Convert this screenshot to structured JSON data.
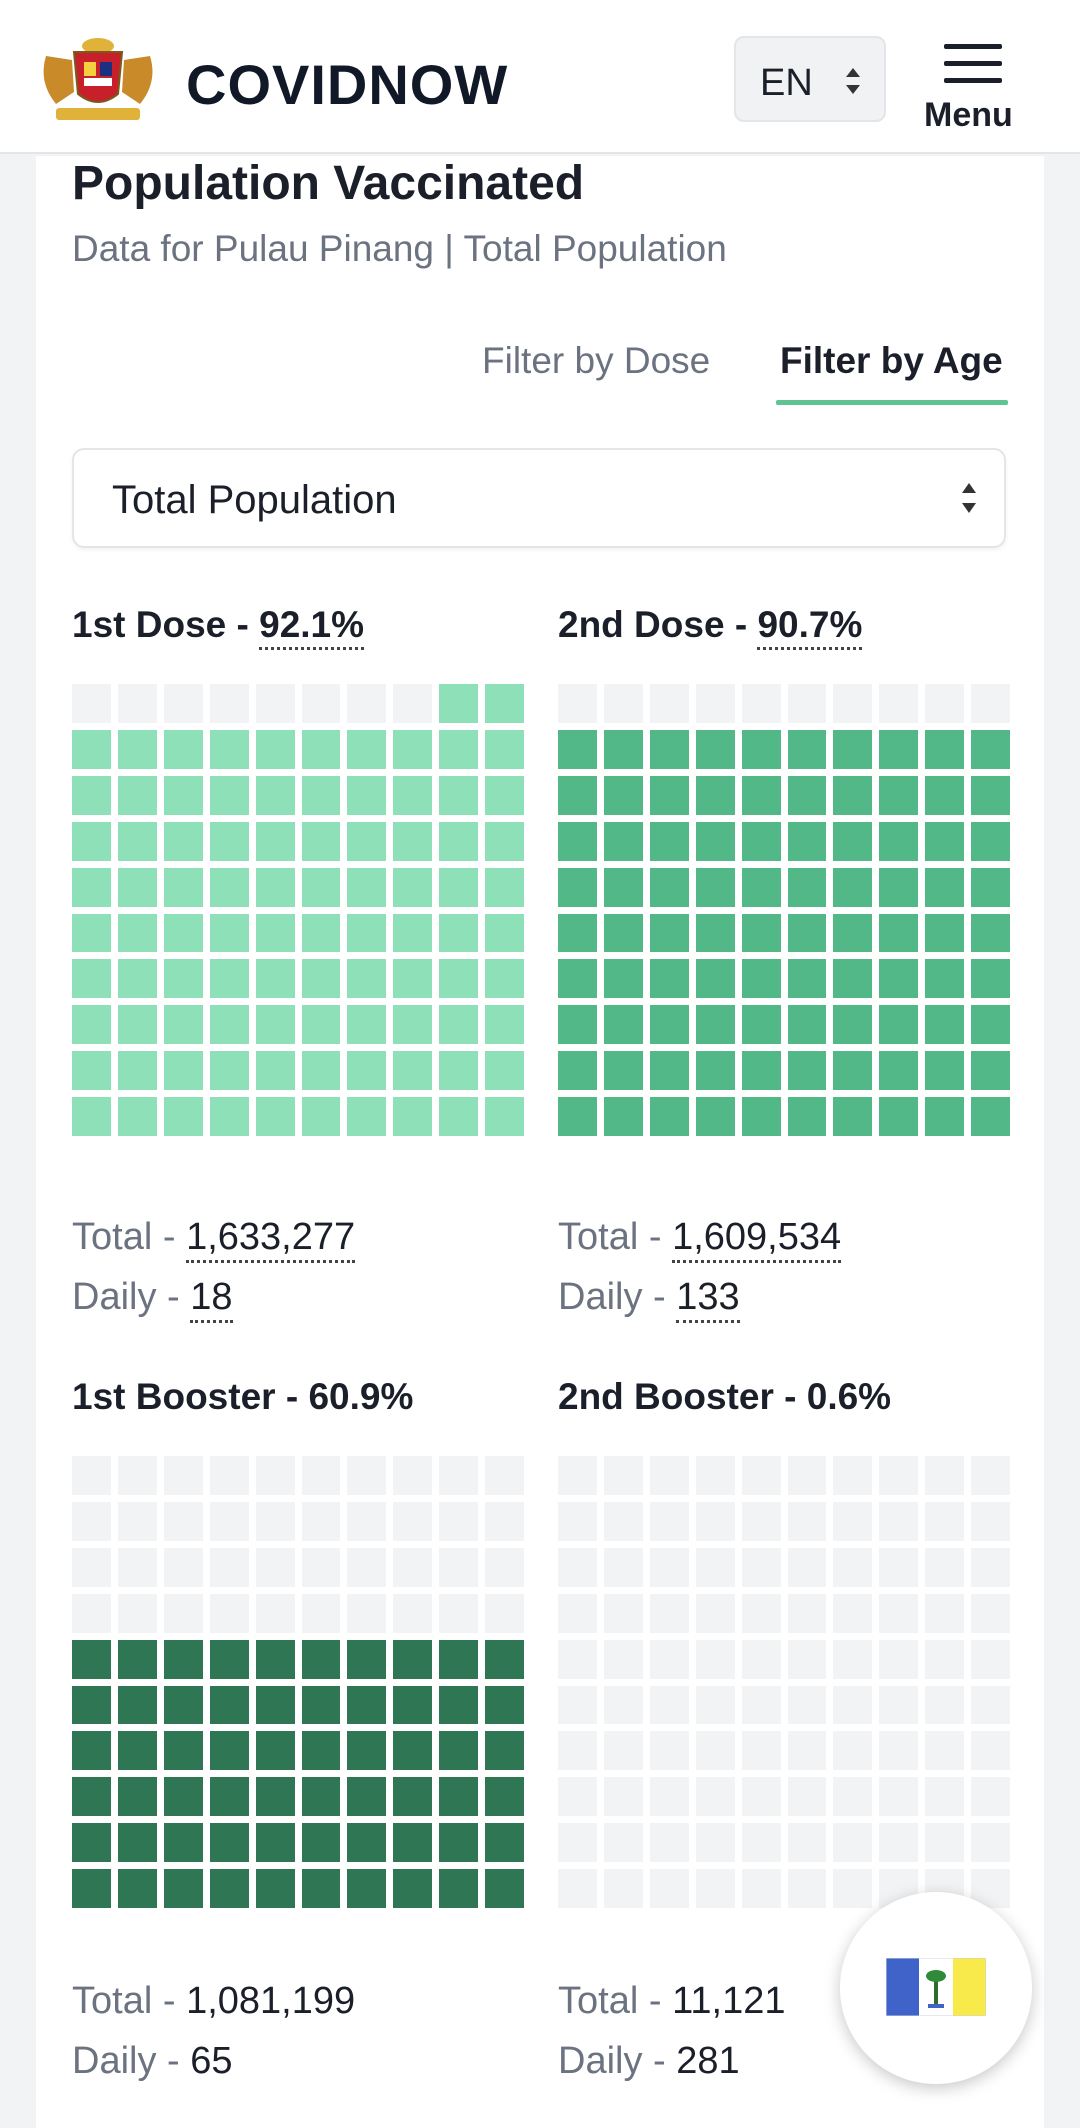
{
  "header": {
    "brand": "COVIDNOW",
    "language": "EN",
    "menu_label": "Menu"
  },
  "section": {
    "title": "Population Vaccinated",
    "subtitle": "Data for Pulau Pinang | Total Population"
  },
  "tabs": {
    "dose_label": "Filter by Dose",
    "age_label": "Filter by Age",
    "active": "Filter by Age"
  },
  "filter": {
    "selected": "Total Population"
  },
  "labels": {
    "total": "Total",
    "daily": "Daily",
    "sep": " - "
  },
  "panels": [
    {
      "name": "1st Dose",
      "percent": "92.1%",
      "total": "1,633,277",
      "daily": "18",
      "filled_cells": 92,
      "color": "#8de0b8"
    },
    {
      "name": "2nd Dose",
      "percent": "90.7%",
      "total": "1,609,534",
      "daily": "133",
      "filled_cells": 90,
      "color": "#52b887"
    },
    {
      "name": "1st Booster",
      "percent": "60.9%",
      "total": "1,081,199",
      "daily": "65",
      "filled_cells": 60,
      "color": "#2f7754"
    },
    {
      "name": "2nd Booster",
      "percent": "0.6%",
      "total": "11,121",
      "daily": "281",
      "filled_cells": 0,
      "color": "#1f5a3e"
    }
  ],
  "colors": {
    "accent": "#5fc492",
    "empty_cell": "#f2f3f5"
  },
  "icons": {
    "logo": "coat-of-arms-logo",
    "language_chevron": "chevron-updown-icon",
    "menu": "hamburger-icon",
    "select_chevron": "chevron-updown-icon",
    "state_flag": "penang-flag-icon"
  }
}
